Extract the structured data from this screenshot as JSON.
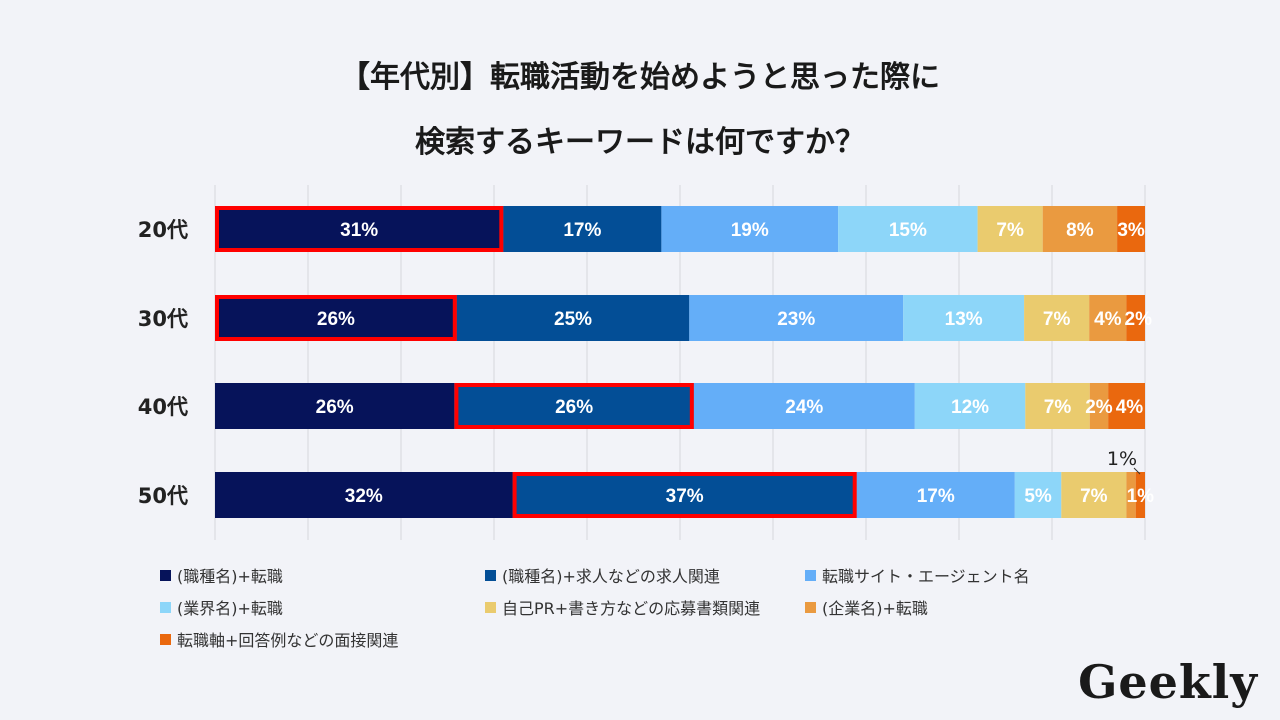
{
  "header": {
    "title_line1": "【年代別】転職活動を始めようと思った際に",
    "title_line2": "検索するキーワードは何ですか？"
  },
  "chart_data": {
    "type": "bar",
    "orientation": "horizontal",
    "stacked": "100%",
    "categories": [
      "20代",
      "30代",
      "40代",
      "50代"
    ],
    "series": [
      {
        "name": "(職種名)+転職",
        "color": "#06135a",
        "values": [
          31,
          26,
          26,
          32
        ]
      },
      {
        "name": "(職種名)+求人などの求人関連",
        "color": "#034e96",
        "values": [
          17,
          25,
          26,
          37
        ]
      },
      {
        "name": "転職サイト・エージェント名",
        "color": "#64aef8",
        "values": [
          19,
          23,
          24,
          17
        ]
      },
      {
        "name": "(業界名)+転職",
        "color": "#8dd6f9",
        "values": [
          15,
          13,
          12,
          5
        ]
      },
      {
        "name": "自己PR+書き方などの応募書類関連",
        "color": "#eacb6e",
        "values": [
          7,
          7,
          7,
          7
        ]
      },
      {
        "name": "(企業名)+転職",
        "color": "#ea9a40",
        "values": [
          8,
          4,
          2,
          1
        ]
      },
      {
        "name": "転職軸+回答例などの面接関連",
        "color": "#ea680e",
        "values": [
          3,
          2,
          4,
          1
        ]
      }
    ],
    "data_label_suffix": "%",
    "highlighted": [
      [
        0,
        0
      ],
      [
        1,
        0
      ],
      [
        2,
        1
      ],
      [
        3,
        1
      ]
    ],
    "highlight_color": "#ff0000",
    "grid": "vertical",
    "legend_position": "bottom"
  },
  "logo": "Geekly"
}
